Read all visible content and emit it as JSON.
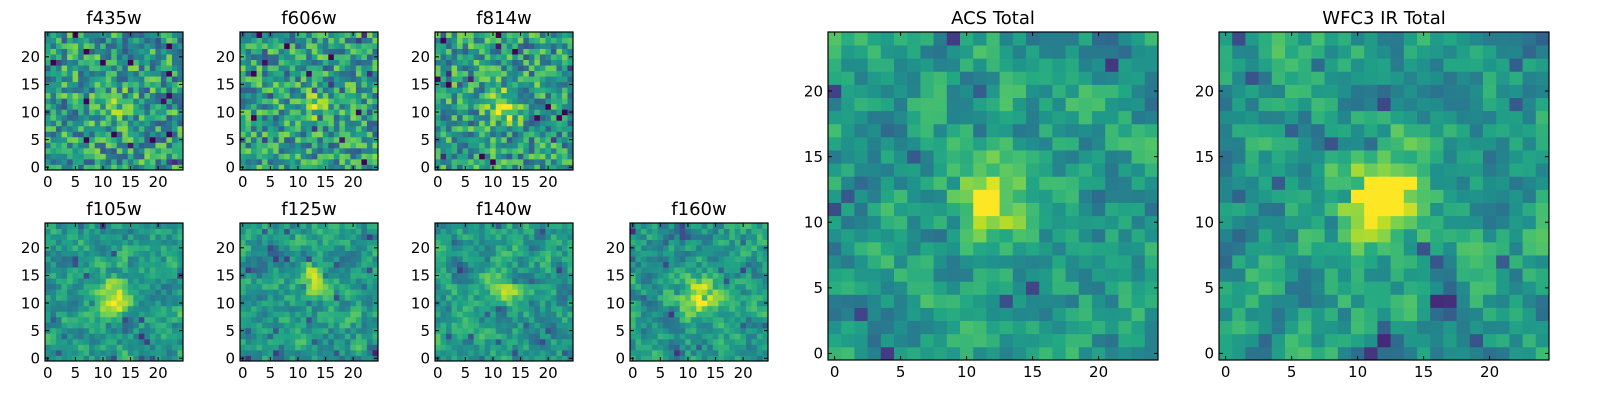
{
  "chart_data": [
    {
      "type": "heatmap",
      "title": "f435w",
      "xticks": [
        "0",
        "5",
        "10",
        "15",
        "20"
      ],
      "yticks": [
        "0",
        "5",
        "10",
        "15",
        "20"
      ],
      "xlim": [
        -0.5,
        24.5
      ],
      "ylim": [
        -0.5,
        24.5
      ],
      "grid": false,
      "colormap": "viridis",
      "peak": [
        12,
        11
      ],
      "peak_strength": 0.15
    },
    {
      "type": "heatmap",
      "title": "f606w",
      "xticks": [
        "0",
        "5",
        "10",
        "15",
        "20"
      ],
      "yticks": [
        "0",
        "5",
        "10",
        "15",
        "20"
      ],
      "xlim": [
        -0.5,
        24.5
      ],
      "ylim": [
        -0.5,
        24.5
      ],
      "grid": false,
      "colormap": "viridis",
      "peak": [
        13,
        11
      ],
      "peak_strength": 0.2
    },
    {
      "type": "heatmap",
      "title": "f814w",
      "xticks": [
        "0",
        "5",
        "10",
        "15",
        "20"
      ],
      "yticks": [
        "0",
        "5",
        "10",
        "15",
        "20"
      ],
      "xlim": [
        -0.5,
        24.5
      ],
      "ylim": [
        -0.5,
        24.5
      ],
      "grid": false,
      "colormap": "viridis",
      "peak": [
        12,
        11
      ],
      "peak_strength": 0.35
    },
    {
      "type": "heatmap",
      "title": "f105w",
      "xticks": [
        "0",
        "5",
        "10",
        "15",
        "20"
      ],
      "yticks": [
        "0",
        "5",
        "10",
        "15",
        "20"
      ],
      "xlim": [
        -0.5,
        24.5
      ],
      "ylim": [
        -0.5,
        24.5
      ],
      "grid": false,
      "colormap": "viridis",
      "peak": [
        12,
        11
      ],
      "peak_strength": 0.45
    },
    {
      "type": "heatmap",
      "title": "f125w",
      "xticks": [
        "0",
        "5",
        "10",
        "15",
        "20"
      ],
      "yticks": [
        "0",
        "5",
        "10",
        "15",
        "20"
      ],
      "xlim": [
        -0.5,
        24.5
      ],
      "ylim": [
        -0.5,
        24.5
      ],
      "grid": false,
      "colormap": "viridis",
      "peak": [
        13,
        14
      ],
      "peak_strength": 0.4
    },
    {
      "type": "heatmap",
      "title": "f140w",
      "xticks": [
        "0",
        "5",
        "10",
        "15",
        "20"
      ],
      "yticks": [
        "0",
        "5",
        "10",
        "15",
        "20"
      ],
      "xlim": [
        -0.5,
        24.5
      ],
      "ylim": [
        -0.5,
        24.5
      ],
      "grid": false,
      "colormap": "viridis",
      "peak": [
        12,
        12
      ],
      "peak_strength": 0.4
    },
    {
      "type": "heatmap",
      "title": "f160w",
      "xticks": [
        "0",
        "5",
        "10",
        "15",
        "20"
      ],
      "yticks": [
        "0",
        "5",
        "10",
        "15",
        "20"
      ],
      "xlim": [
        -0.5,
        24.5
      ],
      "ylim": [
        -0.5,
        24.5
      ],
      "grid": false,
      "colormap": "viridis",
      "peak": [
        12,
        11
      ],
      "peak_strength": 0.5
    },
    {
      "type": "heatmap",
      "title": "ACS Total",
      "xticks": [
        "0",
        "5",
        "10",
        "15",
        "20"
      ],
      "yticks": [
        "0",
        "5",
        "10",
        "15",
        "20"
      ],
      "xlim": [
        -0.5,
        24.5
      ],
      "ylim": [
        -0.5,
        24.5
      ],
      "grid": false,
      "colormap": "viridis",
      "peak": [
        12,
        12
      ],
      "peak_strength": 0.35
    },
    {
      "type": "heatmap",
      "title": "WFC3 IR Total",
      "xticks": [
        "0",
        "5",
        "10",
        "15",
        "20"
      ],
      "yticks": [
        "0",
        "5",
        "10",
        "15",
        "20"
      ],
      "xlim": [
        -0.5,
        24.5
      ],
      "ylim": [
        -0.5,
        24.5
      ],
      "grid": false,
      "colormap": "viridis",
      "peak": [
        12,
        12
      ],
      "peak_strength": 0.7
    }
  ]
}
